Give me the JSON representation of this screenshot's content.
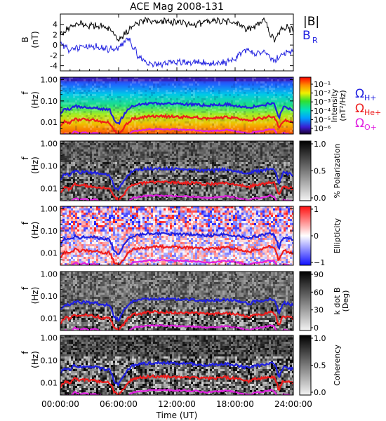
{
  "chart_data": {
    "title": "ACE Mag 2008-131",
    "x_axis": {
      "label": "Time (UT)",
      "tick_labels": [
        "00:00:00",
        "06:00:00",
        "12:00:00",
        "18:00:00",
        "24:00:00"
      ],
      "range_hours": [
        0,
        24
      ],
      "tick_hours": [
        0,
        6,
        12,
        18,
        24
      ]
    },
    "panels": [
      {
        "type": "line",
        "ylabel": "B",
        "yunits": "(nT)",
        "ylim": [
          -5,
          6
        ],
        "yticks": [
          "4",
          "2",
          "0",
          "-2",
          "-4"
        ],
        "ytick_values": [
          4,
          2,
          0,
          -2,
          -4
        ],
        "legend": [
          {
            "label": "|B|",
            "color": "#000000"
          },
          {
            "label": "B",
            "sub": "R",
            "color": "#2020e0"
          }
        ],
        "series": [
          {
            "name": "|B|",
            "color": "#000000",
            "x": [
              0,
              1,
              2,
              3,
              4,
              5,
              6,
              7,
              8,
              9,
              10,
              11,
              12,
              13,
              14,
              15,
              16,
              17,
              18,
              19,
              20,
              21,
              22,
              23,
              24
            ],
            "y": [
              2.0,
              3.5,
              4.0,
              3.8,
              3.7,
              3.4,
              1.2,
              2.8,
              4.2,
              4.8,
              4.6,
              4.5,
              4.4,
              4.2,
              3.9,
              4.6,
              4.7,
              4.5,
              4.1,
              3.2,
              3.6,
              4.8,
              0.8,
              3.6,
              2.8
            ]
          },
          {
            "name": "B",
            "color": "#2020e0",
            "x": [
              0,
              1,
              2,
              3,
              4,
              5,
              6,
              7,
              8,
              9,
              10,
              11,
              12,
              13,
              14,
              15,
              16,
              17,
              18,
              19,
              20,
              21,
              22,
              23,
              24
            ],
            "y": [
              0.5,
              -1.0,
              -0.5,
              -0.2,
              -0.4,
              -0.8,
              -0.6,
              1.5,
              -2.0,
              -3.5,
              -3.8,
              -3.6,
              -3.2,
              -3.4,
              -3.2,
              -3.6,
              -3.6,
              -3.4,
              -2.5,
              -0.8,
              -1.8,
              -1.2,
              -3.2,
              -1.6,
              -1.2
            ]
          }
        ]
      },
      {
        "type": "heatmap",
        "ylabel": "f",
        "yunits": "(Hz)",
        "yticks": [
          "1.00",
          "0.10",
          "0.01"
        ],
        "colorbar": {
          "label": "Intensity",
          "units": "(nT²/Hz)",
          "palette": "rainbow",
          "log": true,
          "tick_labels": [
            "10⁻¹",
            "10⁻²",
            "10⁻³",
            "10⁻⁴",
            "10⁻⁵",
            "10⁻⁶"
          ]
        },
        "side_legend": [
          {
            "symbol": "Ω",
            "sub": "H+",
            "color": "#2020e0"
          },
          {
            "symbol": "Ω",
            "sub": "He+",
            "color": "#ee1c1c"
          },
          {
            "symbol": "Ω",
            "sub": "O+",
            "color": "#e020e0"
          }
        ]
      },
      {
        "type": "heatmap",
        "ylabel": "f",
        "yunits": "(Hz)",
        "yticks": [
          "1.00",
          "0.10",
          "0.01"
        ],
        "colorbar": {
          "label": "% Polarization",
          "palette": "gray",
          "range": [
            0,
            1.0
          ],
          "tick_labels": [
            "1.0",
            "0.5",
            "0.0"
          ]
        }
      },
      {
        "type": "heatmap",
        "ylabel": "f",
        "yunits": "(Hz)",
        "yticks": [
          "1.00",
          "0.10",
          "0.01"
        ],
        "colorbar": {
          "label": "Ellipticity",
          "palette": "blue-white-red",
          "range": [
            -1,
            1
          ],
          "tick_labels": [
            "1",
            "0",
            "−1"
          ]
        }
      },
      {
        "type": "heatmap",
        "ylabel": "f",
        "yunits": "(Hz)",
        "yticks": [
          "1.00",
          "0.10",
          "0.01"
        ],
        "colorbar": {
          "label": "k dot B",
          "units": "(Deg)",
          "palette": "gray",
          "range": [
            0,
            90
          ],
          "tick_labels": [
            "90",
            "60",
            "30",
            "0"
          ]
        }
      },
      {
        "type": "heatmap",
        "ylabel": "f",
        "yunits": "(Hz)",
        "yticks": [
          "1.00",
          "0.10",
          "0.01"
        ],
        "colorbar": {
          "label": "Coherency",
          "palette": "gray",
          "range": [
            0,
            1.0
          ],
          "tick_labels": [
            "1.0",
            "0.5",
            "0.0"
          ]
        }
      }
    ],
    "gyrofrequency_lines_hz": {
      "x": [
        0,
        0.5,
        1,
        1.5,
        2,
        2.5,
        3,
        3.5,
        4,
        4.5,
        5,
        5.5,
        6,
        6.5,
        7,
        7.5,
        8,
        8.5,
        9,
        10,
        11,
        12,
        13,
        14,
        15,
        16,
        17,
        18,
        19,
        19.5,
        20,
        20.5,
        21,
        21.5,
        22,
        22.5,
        23,
        23.5,
        24
      ],
      "H+": [
        0.025,
        0.045,
        0.038,
        0.06,
        0.05,
        0.055,
        0.05,
        0.052,
        0.045,
        0.04,
        0.042,
        0.012,
        0.008,
        0.02,
        0.04,
        0.06,
        0.065,
        0.07,
        0.074,
        0.076,
        0.074,
        0.072,
        0.07,
        0.068,
        0.06,
        0.065,
        0.07,
        0.062,
        0.05,
        0.045,
        0.058,
        0.06,
        0.065,
        0.075,
        0.07,
        0.012,
        0.05,
        0.045,
        0.04
      ],
      "He+": [
        0.006,
        0.011,
        0.009,
        0.015,
        0.012,
        0.014,
        0.012,
        0.013,
        0.011,
        0.01,
        0.0105,
        0.004,
        0.003,
        0.005,
        0.01,
        0.015,
        0.016,
        0.017,
        0.0185,
        0.019,
        0.0185,
        0.018,
        0.0175,
        0.017,
        0.015,
        0.016,
        0.0175,
        0.0155,
        0.0125,
        0.011,
        0.0145,
        0.015,
        0.016,
        0.019,
        0.0175,
        0.004,
        0.0125,
        0.011,
        0.01
      ],
      "O+": [
        0.0016,
        0.0028,
        0.0024,
        0.0037,
        0.003,
        0.0034,
        0.003,
        0.0032,
        0.0028,
        0.0025,
        0.0026,
        0.0015,
        0.0013,
        0.0014,
        0.0025,
        0.0037,
        0.004,
        0.0043,
        0.0046,
        0.0047,
        0.0046,
        0.0045,
        0.0044,
        0.0042,
        0.0037,
        0.004,
        0.0044,
        0.0039,
        0.0031,
        0.0028,
        0.0036,
        0.0037,
        0.004,
        0.0047,
        0.0044,
        0.0015,
        0.0031,
        0.0028,
        0.0025
      ]
    }
  }
}
